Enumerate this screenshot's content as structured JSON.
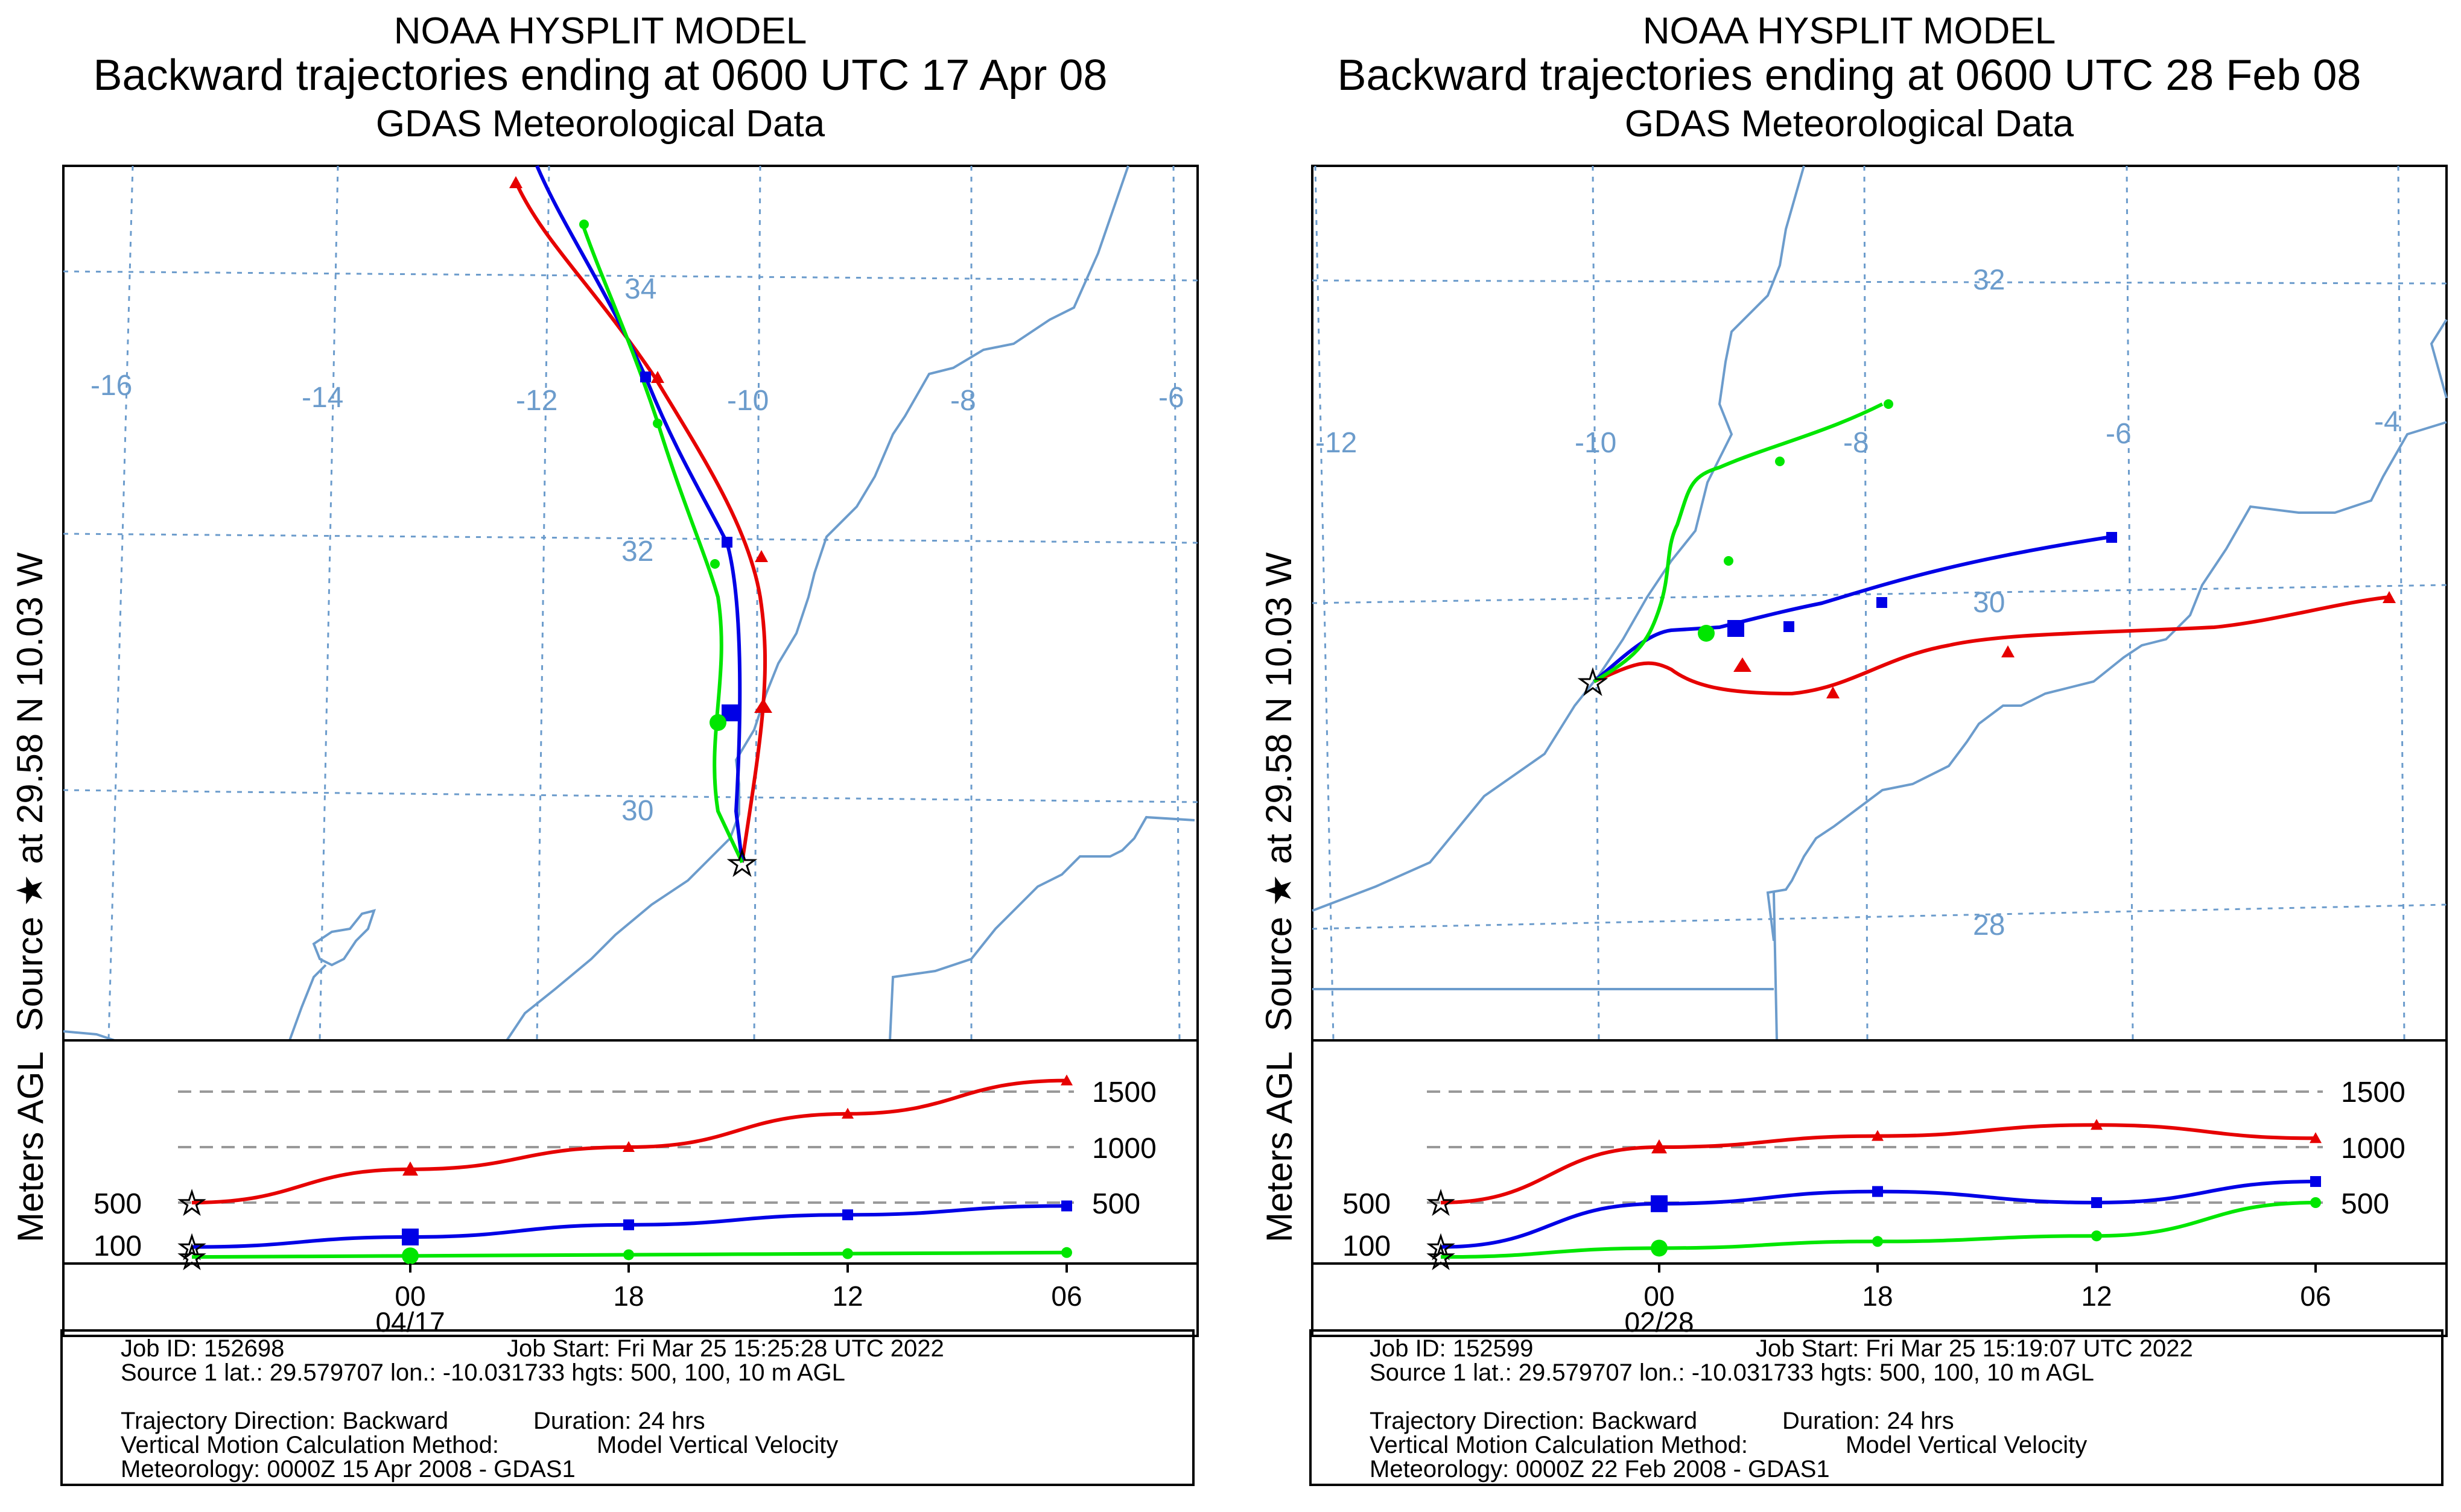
{
  "colors": {
    "map_line": "#6c9ccc",
    "traj_500": "#e60000",
    "traj_100": "#0000e6",
    "traj_10": "#00e600",
    "grid": "#6c9ccc"
  },
  "panels": [
    {
      "title": "NOAA HYSPLIT MODEL",
      "subtitle": "Backward trajectories ending at 0600 UTC 17 Apr 08",
      "data_label": "GDAS Meteorological Data",
      "source_label": "Source ★ at  29.58 N   10.03 W",
      "agl_label": "Meters AGL",
      "lon_labels": [
        "-16",
        "-14",
        "-12",
        "-10",
        "-8",
        "-6"
      ],
      "lat_labels": [
        "34",
        "32",
        "30"
      ],
      "level_labels": [
        "1500",
        "1000",
        "500"
      ],
      "left_levels": [
        "500",
        "100"
      ],
      "time_ticks": [
        "00",
        "18",
        "12",
        "06"
      ],
      "date_label": "04/17",
      "info": {
        "job_id": "Job ID: 152698",
        "job_start": "Job Start: Fri Mar 25 15:25:28 UTC 2022",
        "source": "Source 1 lat.: 29.579707  lon.: -10.031733  hgts: 500, 100, 10 m AGL",
        "direction": "Trajectory Direction: Backward",
        "duration": "Duration: 24 hrs",
        "vertical_label": "Vertical Motion Calculation Method:",
        "vertical_value": "Model Vertical Velocity",
        "meteorology": "Meteorology: 0000Z 15 Apr 2008 - GDAS1"
      },
      "trajectories": [
        {
          "height_m": 500,
          "series": "red",
          "heights_agl": [
            500,
            800,
            1000,
            1300,
            1600
          ]
        },
        {
          "height_m": 100,
          "series": "blue",
          "heights_agl": [
            100,
            190,
            300,
            390,
            470
          ]
        },
        {
          "height_m": 10,
          "series": "green",
          "heights_agl": [
            10,
            20,
            30,
            40,
            50
          ]
        }
      ]
    },
    {
      "title": "NOAA HYSPLIT MODEL",
      "subtitle": "Backward trajectories ending at 0600 UTC 28 Feb 08",
      "data_label": "GDAS Meteorological Data",
      "source_label": "Source ★ at  29.58 N   10.03 W",
      "agl_label": "Meters AGL",
      "lon_labels": [
        "-12",
        "-10",
        "-8",
        "-6",
        "-4"
      ],
      "lat_labels": [
        "32",
        "30",
        "28"
      ],
      "level_labels": [
        "1500",
        "1000",
        "500"
      ],
      "left_levels": [
        "500",
        "100"
      ],
      "time_ticks": [
        "00",
        "18",
        "12",
        "06"
      ],
      "date_label": "02/28",
      "info": {
        "job_id": "Job ID: 152599",
        "job_start": "Job Start: Fri Mar 25 15:19:07 UTC 2022",
        "source": "Source 1 lat.: 29.579707  lon.: -10.031733  hgts: 500, 100, 10 m AGL",
        "direction": "Trajectory Direction: Backward",
        "duration": "Duration: 24 hrs",
        "vertical_label": "Vertical Motion Calculation Method:",
        "vertical_value": "Model Vertical Velocity",
        "meteorology": "Meteorology: 0000Z 22 Feb 2008 - GDAS1"
      },
      "trajectories": [
        {
          "height_m": 500,
          "series": "red",
          "heights_agl": [
            500,
            1000,
            1100,
            1200,
            1080
          ]
        },
        {
          "height_m": 100,
          "series": "blue",
          "heights_agl": [
            100,
            490,
            600,
            500,
            690
          ]
        },
        {
          "height_m": 10,
          "series": "green",
          "heights_agl": [
            10,
            90,
            150,
            200,
            500
          ]
        }
      ]
    }
  ]
}
